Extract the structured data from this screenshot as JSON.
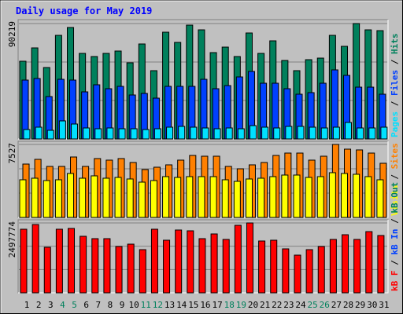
{
  "chart_data": {
    "type": "bar",
    "title": "Daily usage for May 2019",
    "categories": [
      "1",
      "2",
      "3",
      "4",
      "5",
      "6",
      "7",
      "8",
      "9",
      "10",
      "11",
      "12",
      "13",
      "14",
      "15",
      "16",
      "17",
      "18",
      "19",
      "20",
      "21",
      "22",
      "23",
      "24",
      "25",
      "26",
      "27",
      "28",
      "29",
      "30",
      "31"
    ],
    "category_colors": [
      "#000000",
      "#000000",
      "#000000",
      "#00805c",
      "#00805c",
      "#000000",
      "#000000",
      "#000000",
      "#000000",
      "#000000",
      "#00805c",
      "#00805c",
      "#000000",
      "#000000",
      "#000000",
      "#000000",
      "#000000",
      "#00805c",
      "#00805c",
      "#000000",
      "#000000",
      "#000000",
      "#000000",
      "#000000",
      "#00805c",
      "#00805c",
      "#000000",
      "#000000",
      "#000000",
      "#000000",
      "#000000"
    ],
    "panels": [
      {
        "ylim": [
          0,
          90219
        ],
        "yticks": [
          90219
        ],
        "series": [
          {
            "name": "Hits",
            "color": "#00805c",
            "values": [
              60757,
              71189,
              55847,
              81008,
              87145,
              66893,
              64439,
              66893,
              68734,
              59529,
              74258,
              53392,
              83463,
              75485,
              88987,
              85304,
              67507,
              71803,
              64439,
              82850,
              66893,
              76713,
              61370,
              53392,
              61984,
              63211,
              81008,
              72417,
              90219,
              85304,
              84691
            ]
          },
          {
            "name": "Files",
            "color": "#0040ff",
            "values": [
              46030,
              47260,
              33140,
              46640,
              46030,
              36820,
              42350,
              39280,
              41120,
              34370,
              35600,
              31910,
              41120,
              41120,
              41120,
              46640,
              39280,
              41730,
              48480,
              52780,
              43570,
              43570,
              39280,
              34980,
              36210,
              43570,
              54010,
              49710,
              40500,
              40500,
              34980
            ]
          },
          {
            "name": "Pages",
            "color": "#00e0ff",
            "values": [
              7364,
              9206,
              6751,
              14115,
              11660,
              8592,
              7978,
              8592,
              7978,
              7978,
              7364,
              7978,
              9206,
              9819,
              9206,
              8592,
              7978,
              8592,
              7978,
              10433,
              9206,
              8592,
              9819,
              9819,
              9206,
              8592,
              9206,
              12888,
              8592,
              8592,
              9206
            ]
          }
        ]
      },
      {
        "ylim": [
          0,
          7527
        ],
        "yticks": [
          7527
        ],
        "series": [
          {
            "name": "Sites",
            "color": "#ff8000",
            "values": [
              5504,
              5990,
              5261,
              5261,
              6232,
              5261,
              6071,
              5909,
              6071,
              5666,
              4937,
              5180,
              5423,
              5909,
              6394,
              6313,
              6313,
              5261,
              5018,
              5423,
              5666,
              6394,
              6637,
              6637,
              5909,
              6313,
              7527,
              7042,
              6961,
              6637,
              5585
            ]
          },
          {
            "name": "Visits",
            "color": "#ffff00",
            "values": [
              3885,
              4047,
              3804,
              3885,
              4533,
              4047,
              4290,
              4047,
              4128,
              3966,
              3642,
              3804,
              4209,
              4128,
              4209,
              4209,
              4209,
              3885,
              3723,
              3966,
              4047,
              4209,
              4371,
              4371,
              4128,
              4209,
              4614,
              4533,
              4452,
              4209,
              3885
            ]
          }
        ]
      },
      {
        "ylim": [
          0,
          2497774
        ],
        "yticks": [
          2497774
        ],
        "series": [
          {
            "name": "kB F",
            "color": "#ff0000",
            "values": [
              2273265,
              2441655,
              1627770,
              2273265,
              2301330,
              2020680,
              1936485,
              1936485,
              1655835,
              1740030,
              1543575,
              2273265,
              1880355,
              2245200,
              2217135,
              1936485,
              2104875,
              1908420,
              2413590,
              2497774,
              1852290,
              1880355,
              1571640,
              1347120,
              1543575,
              1655835,
              1908420,
              2076810,
              1908420,
              2188170,
              2048745
            ]
          }
        ],
        "extra_legend": [
          {
            "name": "kB In",
            "color": "#0040ff"
          },
          {
            "name": "kB Out",
            "color": "#00805c"
          }
        ]
      }
    ]
  }
}
